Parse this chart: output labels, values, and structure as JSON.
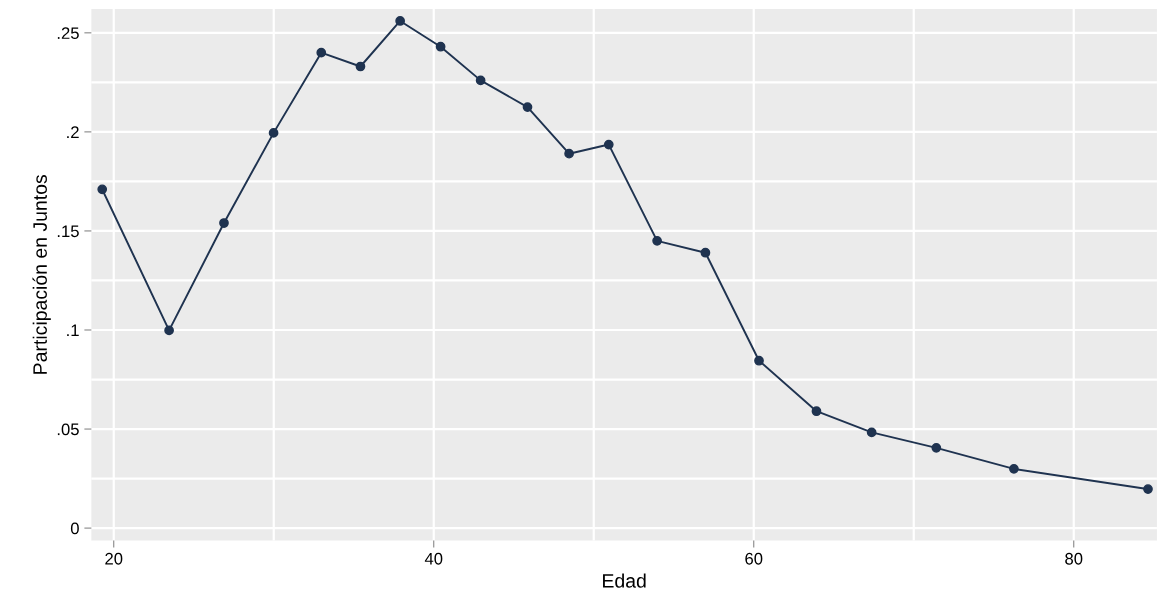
{
  "chart_data": {
    "type": "line",
    "xlabel": "Edad",
    "ylabel": "Participación en Juntos",
    "x": [
      19.28,
      23.46,
      26.89,
      29.99,
      32.97,
      35.42,
      37.9,
      40.43,
      42.93,
      45.86,
      48.46,
      50.94,
      53.96,
      56.98,
      60.33,
      63.92,
      67.37,
      71.41,
      76.26,
      84.64
    ],
    "series": [
      {
        "color": "#1f3350",
        "values": [
          0.171,
          0.0998,
          0.154,
          0.1995,
          0.24,
          0.233,
          0.256,
          0.243,
          0.226,
          0.2125,
          0.189,
          0.1936,
          0.145,
          0.139,
          0.0845,
          0.059,
          0.0483,
          0.0405,
          0.0299,
          0.0197
        ]
      }
    ],
    "xlim": [
      18.6,
      85.2
    ],
    "ylim": [
      -0.0063,
      0.262
    ],
    "xticks": [
      20,
      {
        "value": 30,
        "label": null
      },
      40,
      {
        "value": 50,
        "label": null
      },
      60,
      {
        "value": 70,
        "label": null
      },
      80
    ],
    "yticks": [
      {
        "value": 0,
        "label": "0"
      },
      {
        "value": 0.025,
        "label": null
      },
      {
        "value": 0.05,
        "label": ".05"
      },
      {
        "value": 0.075,
        "label": null
      },
      {
        "value": 0.1,
        "label": ".1"
      },
      {
        "value": 0.125,
        "label": null
      },
      {
        "value": 0.15,
        "label": ".15"
      },
      {
        "value": 0.175,
        "label": null
      },
      {
        "value": 0.2,
        "label": ".2"
      },
      {
        "value": 0.225,
        "label": null
      },
      {
        "value": 0.25,
        "label": ".25"
      }
    ],
    "grid": true,
    "marker": "circle",
    "line_style": "solid"
  }
}
